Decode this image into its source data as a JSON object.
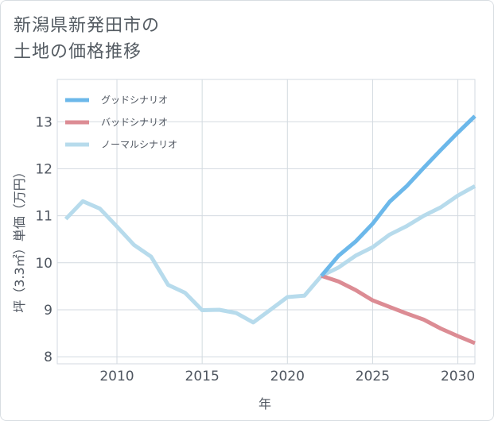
{
  "title_lines": [
    "新潟県新発田市の",
    "土地の価格推移"
  ],
  "chart_data": {
    "type": "line",
    "title": "新潟県新発田市の土地の価格推移",
    "xlabel": "年",
    "ylabel": "坪（3.3㎡）単価（万円）",
    "xlim": [
      2006.5,
      2031
    ],
    "ylim": [
      7.85,
      13.9
    ],
    "xticks": [
      2010,
      2015,
      2020,
      2025,
      2030
    ],
    "yticks": [
      8,
      9,
      10,
      11,
      12,
      13
    ],
    "grid": true,
    "legend_position": "top-left",
    "series": [
      {
        "name": "グッドシナリオ",
        "color": "#6cb8ea",
        "x": [
          2022,
          2023,
          2024,
          2025,
          2026,
          2027,
          2028,
          2029,
          2030,
          2031
        ],
        "y": [
          9.72,
          10.15,
          10.45,
          10.83,
          11.3,
          11.63,
          12.02,
          12.4,
          12.77,
          13.12
        ]
      },
      {
        "name": "バッドシナリオ",
        "color": "#dc8c94",
        "x": [
          2022,
          2023,
          2024,
          2025,
          2026,
          2027,
          2028,
          2029,
          2030,
          2031
        ],
        "y": [
          9.72,
          9.6,
          9.42,
          9.2,
          9.06,
          8.92,
          8.79,
          8.6,
          8.44,
          8.29
        ]
      },
      {
        "name": "ノーマルシナリオ",
        "color": "#b7dbec",
        "x": [
          2007,
          2008,
          2009,
          2010,
          2011,
          2012,
          2013,
          2014,
          2015,
          2016,
          2017,
          2018,
          2019,
          2020,
          2021,
          2022,
          2023,
          2024,
          2025,
          2026,
          2027,
          2028,
          2029,
          2030,
          2031
        ],
        "y": [
          10.93,
          11.31,
          11.15,
          10.77,
          10.38,
          10.13,
          9.53,
          9.36,
          8.99,
          9.0,
          8.93,
          8.73,
          9.0,
          9.27,
          9.3,
          9.72,
          9.9,
          10.15,
          10.33,
          10.6,
          10.78,
          11.0,
          11.18,
          11.43,
          11.63
        ]
      }
    ]
  }
}
